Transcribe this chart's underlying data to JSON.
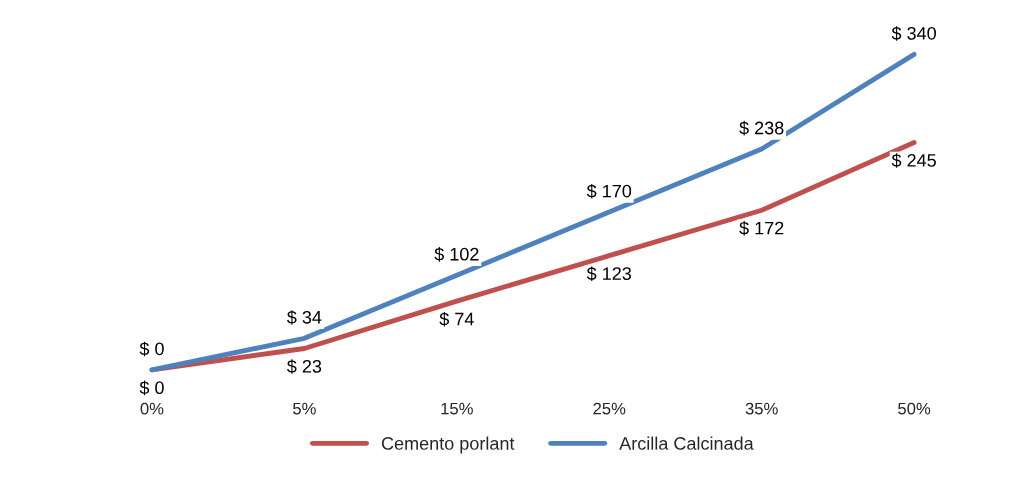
{
  "chart_data": {
    "type": "line",
    "categories": [
      "0%",
      "5%",
      "15%",
      "25%",
      "35%",
      "50%"
    ],
    "series": [
      {
        "name": "Cemento porlant",
        "color": "#c0504d",
        "values": [
          0,
          23,
          74,
          123,
          172,
          245
        ],
        "value_labels": [
          "$ 0",
          "$ 23",
          "$ 74",
          "$ 123",
          "$ 172",
          "$ 245"
        ]
      },
      {
        "name": "Arcilla Calcinada",
        "color": "#4f81bd",
        "values": [
          0,
          34,
          102,
          170,
          238,
          340
        ],
        "value_labels": [
          "$ 0",
          "$ 34",
          "$ 102",
          "$ 170",
          "$ 238",
          "$ 340"
        ]
      }
    ],
    "legend": "bottom",
    "grid": false,
    "marker": "none",
    "line_style": "solid"
  }
}
